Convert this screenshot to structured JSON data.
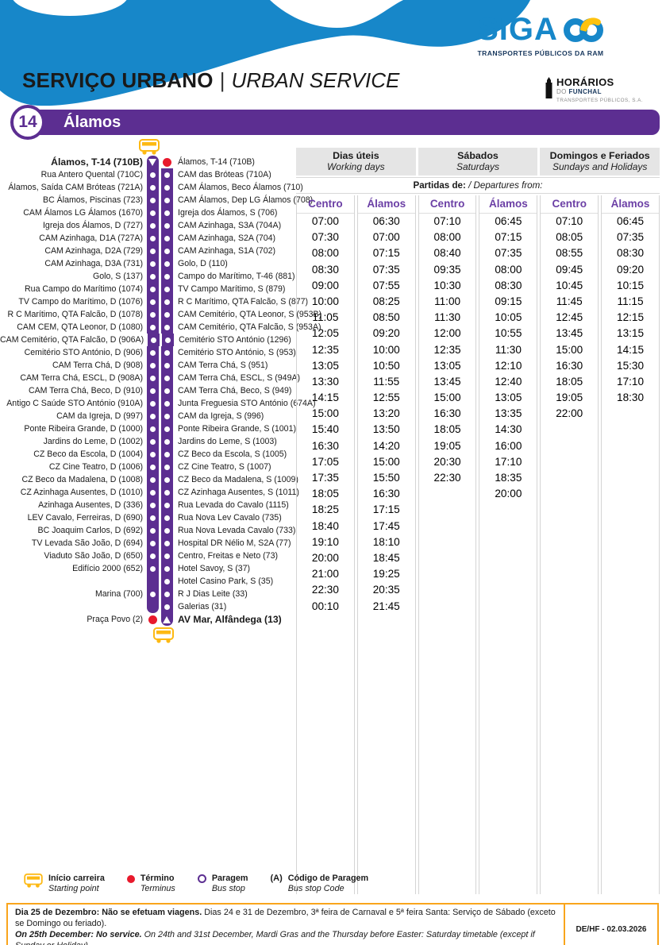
{
  "colors": {
    "purple": "#5C2E91",
    "blue": "#1787C9",
    "navy": "#16365C",
    "yellow": "#FDB913",
    "red": "#E8192C",
    "grey_bg": "#E5E5E5",
    "footer_border": "#F9A51C"
  },
  "header": {
    "siga": {
      "text": "SIGA",
      "tagline": "TRANSPORTES PÚBLICOS DA RAM"
    },
    "service": {
      "pt": "SERVIÇO URBANO",
      "sep": "|",
      "en": "URBAN SERVICE"
    },
    "hf_logo": {
      "line1": "HORÁRIOS",
      "line2_grey": "DO",
      "line2_blue": "FUNCHAL",
      "line3": "TRANSPORTES PÚBLICOS, S.A."
    },
    "route": {
      "number": "14",
      "name": "Álamos"
    }
  },
  "route_diagram": {
    "rows": [
      {
        "left": "Álamos, T-14 (710B)",
        "left_bold": true,
        "lm": "tri-down",
        "rm": "dot",
        "right": "Álamos, T-14 (710B)",
        "right_bold": false
      },
      {
        "left": "Rua Antero Quental (710C)",
        "lm": "circle",
        "rm": "circle",
        "right": "CAM das Bróteas (710A)"
      },
      {
        "left": "Álamos, Saída CAM Bróteas (721A)",
        "lm": "circle",
        "rm": "circle",
        "right": "CAM Álamos, Beco Álamos (710)"
      },
      {
        "left": "BC Álamos, Piscinas (723)",
        "lm": "circle",
        "rm": "circle",
        "right": "CAM Álamos, Dep LG Álamos (708)"
      },
      {
        "left": "CAM Álamos LG Álamos (1670)",
        "lm": "circle",
        "rm": "circle",
        "right": "Igreja dos Álamos, S (706)"
      },
      {
        "left": "Igreja dos Álamos, D (727)",
        "lm": "circle",
        "rm": "circle",
        "right": "CAM Azinhaga, S3A (704A)"
      },
      {
        "left": "CAM Azinhaga, D1A (727A)",
        "lm": "circle",
        "rm": "circle",
        "right": "CAM Azinhaga, S2A (704)"
      },
      {
        "left": "CAM Azinhaga, D2A (729)",
        "lm": "circle",
        "rm": "circle",
        "right": "CAM Azinhaga, S1A (702)"
      },
      {
        "left": "CAM Azinhaga, D3A (731)",
        "lm": "circle",
        "rm": "circle",
        "right": "Golo, D (110)"
      },
      {
        "left": "Golo, S (137)",
        "lm": "circle",
        "rm": "circle",
        "right": "Campo do Marítimo, T-46 (881)"
      },
      {
        "left": "Rua Campo do Marítimo (1074)",
        "lm": "circle",
        "rm": "circle",
        "right": "TV Campo Marítimo, S (879)"
      },
      {
        "left": "TV Campo do Marítimo, D (1076)",
        "lm": "circle",
        "rm": "circle",
        "right": "R C Marítimo, QTA Falcão, S (877)"
      },
      {
        "left": "R C Marítimo, QTA Falcão, D (1078)",
        "lm": "circle",
        "rm": "circle",
        "right": "CAM Cemitério, QTA Leonor, S (953B)"
      },
      {
        "left": "CAM CEM, QTA Leonor, D (1080)",
        "lm": "circle",
        "rm": "circle",
        "right": "CAM Cemitério, QTA Falcão, S (953A)"
      },
      {
        "left": "CAM Cemitério, QTA Falcão, D (906A)",
        "lm": "circle",
        "rm": "circle",
        "right": "Cemitério STO António (1296)"
      },
      {
        "left": "Cemitério STO António, D (906)",
        "lm": "circle",
        "rm": "circle",
        "right": "Cemitério STO António, S (953)"
      },
      {
        "left": "CAM Terra Chá, D (908)",
        "lm": "circle",
        "rm": "circle",
        "right": "CAM Terra Chá, S (951)"
      },
      {
        "left": "CAM Terra Chá, ESCL, D (908A)",
        "lm": "circle",
        "rm": "circle",
        "right": "CAM Terra Chá, ESCL, S (949A)"
      },
      {
        "left": "CAM Terra Chá, Beco, D (910)",
        "lm": "circle",
        "rm": "circle",
        "right": "CAM Terra Chá, Beco, S (949)"
      },
      {
        "left": "Antigo C Saúde STO António (910A)",
        "lm": "circle",
        "rm": "circle",
        "right": "Junta Freguesia STO António (674A)"
      },
      {
        "left": "CAM da Igreja, D (997)",
        "lm": "circle",
        "rm": "circle",
        "right": "CAM da Igreja, S (996)"
      },
      {
        "left": "Ponte Ribeira Grande, D (1000)",
        "lm": "circle",
        "rm": "circle",
        "right": "Ponte Ribeira Grande, S (1001)"
      },
      {
        "left": "Jardins do Leme, D (1002)",
        "lm": "circle",
        "rm": "circle",
        "right": "Jardins do Leme, S (1003)"
      },
      {
        "left": "CZ Beco da Escola, D (1004)",
        "lm": "circle",
        "rm": "circle",
        "right": "CZ Beco da Escola, S (1005)"
      },
      {
        "left": "CZ Cine Teatro, D (1006)",
        "lm": "circle",
        "rm": "circle",
        "right": "CZ Cine Teatro, S (1007)"
      },
      {
        "left": "CZ Beco da Madalena, D (1008)",
        "lm": "circle",
        "rm": "circle",
        "right": "CZ Beco da Madalena, S (1009)"
      },
      {
        "left": "CZ Azinhaga Ausentes, D (1010)",
        "lm": "circle",
        "rm": "circle",
        "right": "CZ Azinhaga Ausentes, S (1011)"
      },
      {
        "left": "Azinhaga Ausentes, D (336)",
        "lm": "circle",
        "rm": "circle",
        "right": "Rua Levada do Cavalo (1115)"
      },
      {
        "left": "LEV Cavalo, Ferreiras, D (690)",
        "lm": "circle",
        "rm": "circle",
        "right": "Rua Nova Lev Cavalo (735)"
      },
      {
        "left": "BC Joaquim Carlos, D (692)",
        "lm": "circle",
        "rm": "circle",
        "right": "Rua Nova Levada Cavalo (733)"
      },
      {
        "left": "TV Levada São João, D (694)",
        "lm": "circle",
        "rm": "circle",
        "right": "Hospital DR Nélio M, S2A (77)"
      },
      {
        "left": "Viaduto São João, D (650)",
        "lm": "circle",
        "rm": "circle",
        "right": "Centro, Freitas e Neto (73)"
      },
      {
        "left": "Edifício 2000 (652)",
        "lm": "circle",
        "rm": "circle",
        "right": "Hotel Savoy, S (37)"
      },
      {
        "left": "",
        "lm": "bar",
        "rm": "circle",
        "right": "Hotel Casino Park, S (35)"
      },
      {
        "left": "Marina (700)",
        "lm": "circle",
        "rm": "circle",
        "right": "R J Dias Leite (33)"
      },
      {
        "left": "",
        "lm": "bar-end",
        "rm": "circle",
        "right": "Galerias (31)"
      },
      {
        "left": "Praça Povo (2)",
        "lm": "dot",
        "rm": "tri-up",
        "right": "AV Mar, Alfândega (13)",
        "right_bold": true
      }
    ]
  },
  "timetable": {
    "groups": [
      {
        "pt": "Dias úteis",
        "en": "Working days"
      },
      {
        "pt": "Sábados",
        "en": "Saturdays"
      },
      {
        "pt": "Domingos e Feriados",
        "en": "Sundays and Holidays"
      }
    ],
    "departures_pt": "Partidas de:",
    "departures_en": " / Departures from:",
    "columns": [
      {
        "header": "Centro",
        "times": [
          "07:00",
          "07:30",
          "08:00",
          "08:30",
          "09:00",
          "10:00",
          "11:05",
          "12:05",
          "12:35",
          "13:05",
          "13:30",
          "14:15",
          "15:00",
          "15:40",
          "16:30",
          "17:05",
          "17:35",
          "18:05",
          "18:25",
          "18:40",
          "19:10",
          "20:00",
          "21:00",
          "22:30",
          "00:10"
        ]
      },
      {
        "header": "Álamos",
        "times": [
          "06:30",
          "07:00",
          "07:15",
          "07:35",
          "07:55",
          "08:25",
          "08:50",
          "09:20",
          "10:00",
          "10:50",
          "11:55",
          "12:55",
          "13:20",
          "13:50",
          "14:20",
          "15:00",
          "15:50",
          "16:30",
          "17:15",
          "17:45",
          "18:10",
          "18:45",
          "19:25",
          "20:35",
          "21:45"
        ]
      },
      {
        "header": "Centro",
        "times": [
          "07:10",
          "08:00",
          "08:40",
          "09:35",
          "10:30",
          "11:00",
          "11:30",
          "12:00",
          "12:35",
          "13:05",
          "13:45",
          "15:00",
          "16:30",
          "18:05",
          "19:05",
          "20:30",
          "22:30"
        ]
      },
      {
        "header": "Álamos",
        "times": [
          "06:45",
          "07:15",
          "07:35",
          "08:00",
          "08:30",
          "09:15",
          "10:05",
          "10:55",
          "11:30",
          "12:10",
          "12:40",
          "13:05",
          "13:35",
          "14:30",
          "16:00",
          "17:10",
          "18:35",
          "20:00"
        ]
      },
      {
        "header": "Centro",
        "times": [
          "07:10",
          "08:05",
          "08:55",
          "09:45",
          "10:45",
          "11:45",
          "12:45",
          "13:45",
          "15:00",
          "16:30",
          "18:05",
          "19:05",
          "22:00"
        ]
      },
      {
        "header": "Álamos",
        "times": [
          "06:45",
          "07:35",
          "08:30",
          "09:20",
          "10:15",
          "11:15",
          "12:15",
          "13:15",
          "14:15",
          "15:30",
          "17:10",
          "18:30"
        ]
      }
    ]
  },
  "legend": {
    "items": [
      {
        "pt": "Início carreira",
        "en": "Starting point",
        "icon": "bus-icon"
      },
      {
        "pt": "Término",
        "en": "Terminus",
        "icon": "terminus-dot-icon"
      },
      {
        "pt": "Paragem",
        "en": "Bus stop",
        "icon": "bus-stop-ring-icon"
      },
      {
        "pt": "Código de Paragem",
        "en": "Bus stop Code",
        "icon": "(A)",
        "prefix": "(A)"
      }
    ]
  },
  "footer": {
    "pt_bold": "Dia 25 de Dezembro: Não se efetuam viagens.",
    "pt_rest": " Dias 24 e 31 de Dezembro, 3ª feira de Carnaval e 5ª feira Santa: Serviço de Sábado (exceto se Domingo ou feriado).",
    "en_bold": "On 25th December: No service.",
    "en_rest": " On 24th and 31st December, Mardi Gras and the Thursday before Easter: Saturday timetable (except if Sunday or Holiday).",
    "code": "DE/HF - 02.03.2026"
  }
}
